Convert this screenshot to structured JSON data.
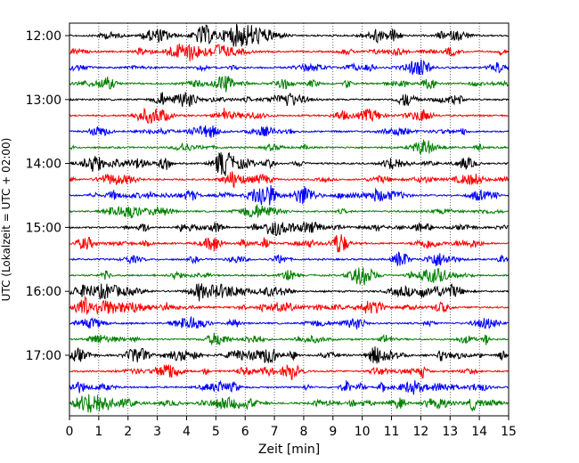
{
  "chart_data": {
    "type": "line",
    "title": "",
    "xlabel": "Zeit  [min]",
    "ylabel": "UTC (Lokalzeit = UTC + 02:00)",
    "x_ticks": [
      0,
      1,
      2,
      3,
      4,
      5,
      6,
      7,
      8,
      9,
      10,
      11,
      12,
      13,
      14,
      15
    ],
    "xlim": [
      0,
      15
    ],
    "y_tick_labels": [
      "12:00",
      "13:00",
      "14:00",
      "15:00",
      "16:00",
      "17:00"
    ],
    "trace_interval_min": 15,
    "trace_start": "12:00",
    "trace_count": 24,
    "colors": [
      "#000000",
      "#ff0000",
      "#0000ff",
      "#008000"
    ],
    "grid": "vertical dotted at each minute",
    "traces": [
      {
        "start": "12:00",
        "color": "#000000"
      },
      {
        "start": "12:15",
        "color": "#ff0000"
      },
      {
        "start": "12:30",
        "color": "#0000ff"
      },
      {
        "start": "12:45",
        "color": "#008000"
      },
      {
        "start": "13:00",
        "color": "#000000"
      },
      {
        "start": "13:15",
        "color": "#ff0000"
      },
      {
        "start": "13:30",
        "color": "#0000ff"
      },
      {
        "start": "13:45",
        "color": "#008000"
      },
      {
        "start": "14:00",
        "color": "#000000"
      },
      {
        "start": "14:15",
        "color": "#ff0000"
      },
      {
        "start": "14:30",
        "color": "#0000ff"
      },
      {
        "start": "14:45",
        "color": "#008000"
      },
      {
        "start": "15:00",
        "color": "#000000"
      },
      {
        "start": "15:15",
        "color": "#ff0000"
      },
      {
        "start": "15:30",
        "color": "#0000ff"
      },
      {
        "start": "15:45",
        "color": "#008000"
      },
      {
        "start": "16:00",
        "color": "#000000"
      },
      {
        "start": "16:15",
        "color": "#ff0000"
      },
      {
        "start": "16:30",
        "color": "#0000ff"
      },
      {
        "start": "16:45",
        "color": "#008000"
      },
      {
        "start": "17:00",
        "color": "#000000"
      },
      {
        "start": "17:15",
        "color": "#ff0000"
      },
      {
        "start": "17:30",
        "color": "#0000ff"
      },
      {
        "start": "17:45",
        "color": "#008000"
      }
    ]
  }
}
